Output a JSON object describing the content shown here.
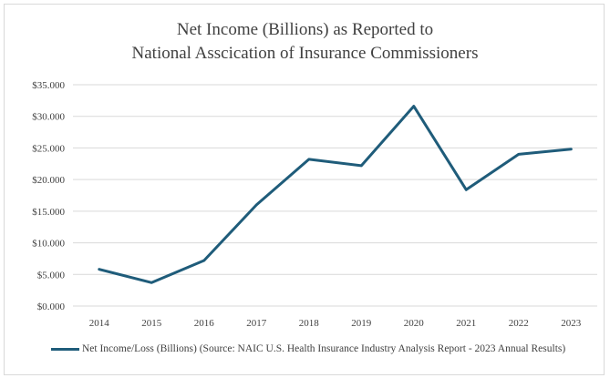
{
  "chart_data": {
    "type": "line",
    "title_lines": [
      "Net Income (Billions) as Reported to",
      "National Asscication  of Insurance  Commissioners"
    ],
    "x": [
      "2014",
      "2015",
      "2016",
      "2017",
      "2018",
      "2019",
      "2020",
      "2021",
      "2022",
      "2023"
    ],
    "series": [
      {
        "name": "Net Income/Loss (Billions) (Source:  NAIC U.S. Health Insurance Industry Analysis Report - 2023 Annual Results)",
        "values": [
          5.8,
          3.7,
          7.2,
          16.0,
          23.2,
          22.2,
          31.6,
          18.4,
          24.0,
          24.8
        ],
        "color": "#1f5c7a"
      }
    ],
    "ylim": [
      0,
      35
    ],
    "yticks": [
      0,
      5,
      10,
      15,
      20,
      25,
      30,
      35
    ],
    "ytick_labels": [
      "$0.000",
      "$5.000",
      "$10.000",
      "$15.000",
      "$20.000",
      "$25.000",
      "$30.000",
      "$35.000"
    ],
    "grid": true,
    "legend": "bottom",
    "gridline_color": "#d9d9d9"
  }
}
